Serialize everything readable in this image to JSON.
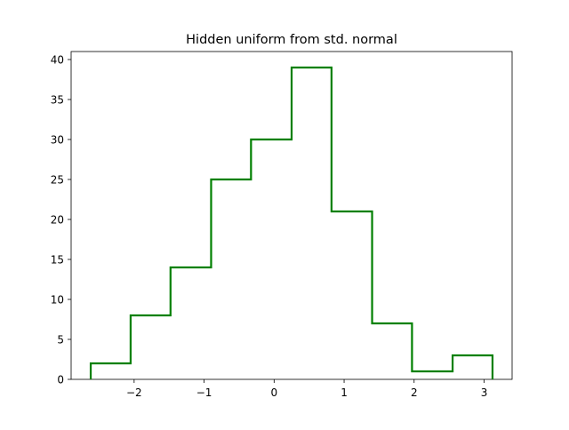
{
  "chart_data": {
    "type": "step",
    "title": "Hidden uniform from std. normal",
    "xlabel": "",
    "ylabel": "",
    "xlim": [
      -2.9,
      3.4
    ],
    "ylim": [
      0,
      41
    ],
    "grid": false,
    "bin_edges": [
      -2.62,
      -2.05,
      -1.48,
      -0.9,
      -0.33,
      0.25,
      0.82,
      1.4,
      1.97,
      2.55,
      3.12
    ],
    "counts": [
      2,
      8,
      14,
      25,
      30,
      39,
      21,
      7,
      1,
      3
    ],
    "x_ticks": [
      {
        "value": -2,
        "label": "−2"
      },
      {
        "value": -1,
        "label": "−1"
      },
      {
        "value": 0,
        "label": "0"
      },
      {
        "value": 1,
        "label": "1"
      },
      {
        "value": 2,
        "label": "2"
      },
      {
        "value": 3,
        "label": "3"
      }
    ],
    "y_ticks": [
      {
        "value": 0,
        "label": "0"
      },
      {
        "value": 5,
        "label": "5"
      },
      {
        "value": 10,
        "label": "10"
      },
      {
        "value": 15,
        "label": "15"
      },
      {
        "value": 20,
        "label": "20"
      },
      {
        "value": 25,
        "label": "25"
      },
      {
        "value": 30,
        "label": "30"
      },
      {
        "value": 35,
        "label": "35"
      },
      {
        "value": 40,
        "label": "40"
      }
    ],
    "line_color": "#008000"
  }
}
